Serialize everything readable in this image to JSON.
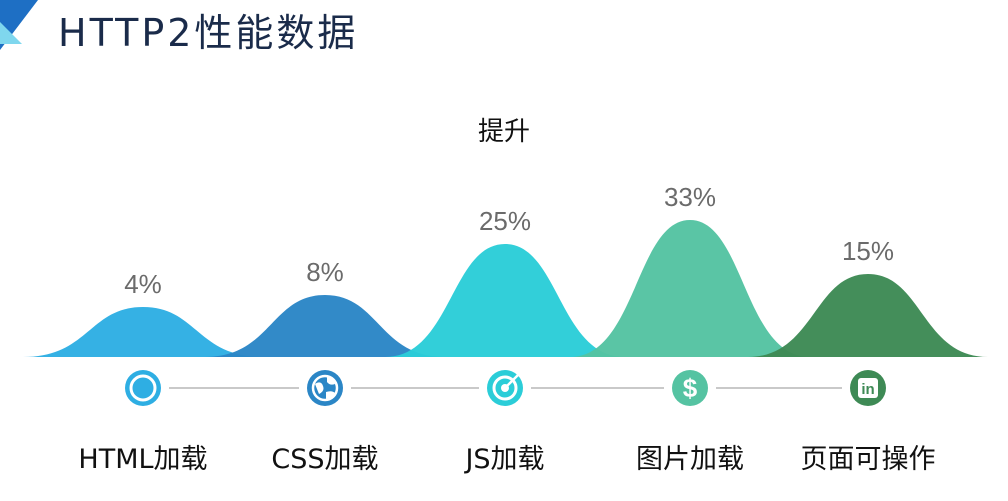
{
  "header": {
    "title": "HTTP2性能数据"
  },
  "chart_data": {
    "type": "area",
    "title": "提升",
    "categories": [
      "HTML加载",
      "CSS加载",
      "JS加载",
      "图片加载",
      "页面可操作"
    ],
    "values": [
      4,
      8,
      25,
      33,
      15
    ],
    "value_labels": [
      "4%",
      "8%",
      "25%",
      "33%",
      "15%"
    ],
    "colors": [
      "#2eaee3",
      "#2b86c6",
      "#2bcdd8",
      "#55c3a2",
      "#3e8a55"
    ],
    "icons": [
      "compass-icon",
      "globe-icon",
      "target-icon",
      "dollar-icon",
      "linkedin-icon"
    ],
    "accent": "#29b3e4",
    "baseline_color": "#c9c9c9"
  }
}
